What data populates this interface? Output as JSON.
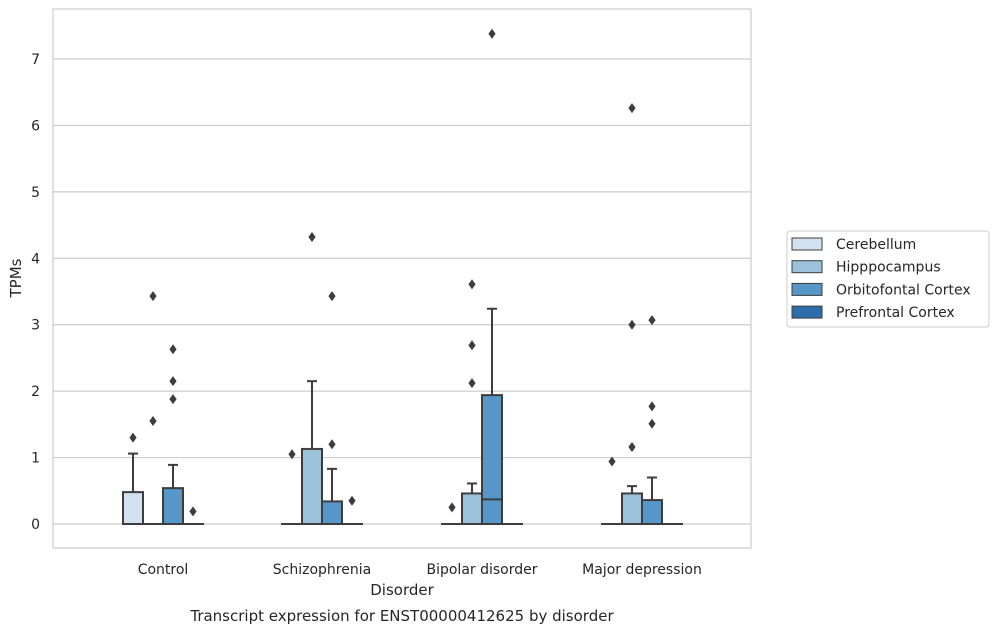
{
  "chart_data": {
    "type": "box",
    "title": "",
    "caption": "Transcript expression for ENST00000412625 by disorder",
    "xlabel": "Disorder",
    "ylabel": "TPMs",
    "ylim": [
      -0.36,
      7.76
    ],
    "yticks": [
      "0",
      "1",
      "2",
      "3",
      "4",
      "5",
      "6",
      "7"
    ],
    "categories": [
      "Control",
      "Schizophrenia",
      "Bipolar disorder",
      "Major depression"
    ],
    "grid": "horizontal",
    "legend_position": "right",
    "series": [
      {
        "name": "Cerebellum",
        "color": "#d1e1f1",
        "boxes": [
          {
            "q1": 0,
            "median": 0,
            "q3": 0.48,
            "whislo": 0,
            "whishi": 1.06,
            "fliers": [
              1.3
            ]
          },
          {
            "q1": 0,
            "median": 0,
            "q3": 0,
            "whislo": 0,
            "whishi": 0,
            "fliers": [
              1.05
            ]
          },
          {
            "q1": 0,
            "median": 0,
            "q3": 0,
            "whislo": 0,
            "whishi": 0,
            "fliers": [
              0.25
            ]
          },
          {
            "q1": 0,
            "median": 0,
            "q3": 0,
            "whislo": 0,
            "whishi": 0,
            "fliers": [
              0.94
            ]
          }
        ]
      },
      {
        "name": "Hipppocampus",
        "color": "#9cc1da",
        "boxes": [
          {
            "q1": 0,
            "median": 0,
            "q3": 0,
            "whislo": 0,
            "whishi": 0,
            "fliers": [
              3.43,
              1.55
            ]
          },
          {
            "q1": 0,
            "median": 0,
            "q3": 1.13,
            "whislo": 0,
            "whishi": 2.15,
            "fliers": [
              4.32
            ]
          },
          {
            "q1": 0,
            "median": 0,
            "q3": 0.46,
            "whislo": 0,
            "whishi": 0.61,
            "fliers": [
              3.61,
              2.69,
              2.12
            ]
          },
          {
            "q1": 0,
            "median": 0,
            "q3": 0.46,
            "whislo": 0,
            "whishi": 0.57,
            "fliers": [
              6.26,
              3.0,
              1.16
            ]
          }
        ]
      },
      {
        "name": "Orbitofontal Cortex",
        "color": "#5697c7",
        "boxes": [
          {
            "q1": 0,
            "median": 0,
            "q3": 0.54,
            "whislo": 0,
            "whishi": 0.89,
            "fliers": [
              2.63,
              2.15,
              1.88
            ]
          },
          {
            "q1": 0,
            "median": 0,
            "q3": 0.34,
            "whislo": 0,
            "whishi": 0.83,
            "fliers": [
              3.43,
              1.2
            ]
          },
          {
            "q1": 0,
            "median": 0.37,
            "q3": 1.94,
            "whislo": 0,
            "whishi": 3.24,
            "fliers": [
              7.38
            ]
          },
          {
            "q1": 0,
            "median": 0,
            "q3": 0.36,
            "whislo": 0,
            "whishi": 0.7,
            "fliers": [
              3.07,
              1.77,
              1.51
            ]
          }
        ]
      },
      {
        "name": "Prefrontal Cortex",
        "color": "#2c6daa",
        "boxes": [
          {
            "q1": 0,
            "median": 0,
            "q3": 0,
            "whislo": 0,
            "whishi": 0,
            "fliers": [
              0.19
            ]
          },
          {
            "q1": 0,
            "median": 0,
            "q3": 0,
            "whislo": 0,
            "whishi": 0,
            "fliers": [
              0.35
            ]
          },
          {
            "q1": 0,
            "median": 0,
            "q3": 0,
            "whislo": 0,
            "whishi": 0,
            "fliers": []
          },
          {
            "q1": 0,
            "median": 0,
            "q3": 0,
            "whislo": 0,
            "whishi": 0,
            "fliers": []
          }
        ]
      }
    ]
  }
}
